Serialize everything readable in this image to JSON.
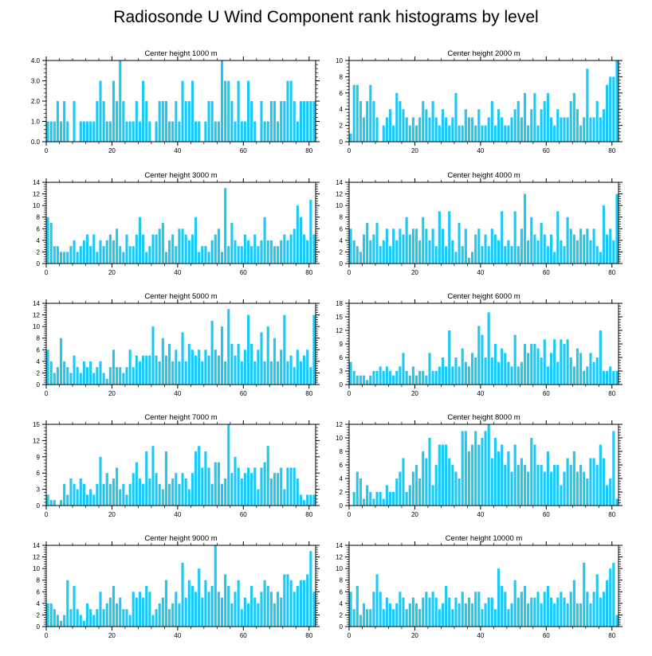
{
  "title": "Radiosonde U Wind Component rank histograms by level",
  "bar_color": "#1ec8f5",
  "chart_data": [
    {
      "type": "bar",
      "title": "Center height 1000 m",
      "xlim": [
        0,
        82
      ],
      "ylim": [
        0,
        4
      ],
      "xticks": [
        0,
        20,
        40,
        60,
        80
      ],
      "yticks": [
        0,
        1,
        2,
        3,
        4
      ],
      "yticklabels": [
        "0.0",
        "1.0",
        "2.0",
        "3.0",
        "4.0"
      ],
      "values": [
        1,
        1,
        1,
        2,
        1,
        2,
        1,
        0,
        2,
        0,
        1,
        1,
        1,
        1,
        1,
        2,
        3,
        2,
        1,
        1,
        3,
        2,
        4,
        2,
        1,
        1,
        1,
        2,
        1,
        3,
        2,
        1,
        0,
        1,
        2,
        2,
        2,
        1,
        1,
        2,
        1,
        3,
        2,
        2,
        3,
        1,
        1,
        0,
        1,
        2,
        2,
        1,
        1,
        4,
        3,
        3,
        2,
        1,
        3,
        1,
        1,
        3,
        2,
        1,
        0,
        2,
        1,
        1,
        2,
        2,
        1,
        2,
        2,
        3,
        3,
        2,
        1,
        2,
        2,
        2,
        2,
        2
      ],
      "value_basis": "estimated from gridlines"
    },
    {
      "type": "bar",
      "title": "Center height 2000 m",
      "xlim": [
        0,
        82
      ],
      "ylim": [
        0,
        10
      ],
      "xticks": [
        0,
        20,
        40,
        60,
        80
      ],
      "yticks": [
        0,
        2,
        4,
        6,
        8,
        10
      ],
      "yticklabels": [
        "0",
        "2",
        "4",
        "6",
        "8",
        "10"
      ],
      "values": [
        1,
        7,
        7,
        5,
        3,
        5,
        7,
        5,
        3,
        0,
        2,
        3,
        4,
        2,
        6,
        5,
        4,
        3,
        2,
        3,
        2,
        3,
        5,
        4,
        3,
        5,
        3,
        2,
        4,
        3,
        2,
        3,
        6,
        2,
        2,
        4,
        3,
        3,
        2,
        4,
        2,
        2,
        3,
        5,
        2,
        4,
        3,
        2,
        2,
        3,
        4,
        5,
        3,
        6,
        2,
        4,
        6,
        2,
        4,
        5,
        6,
        3,
        2,
        4,
        3,
        3,
        3,
        5,
        6,
        4,
        2,
        3,
        9,
        3,
        3,
        5,
        3,
        4,
        7,
        8,
        8,
        10
      ],
      "value_basis": "estimated from gridlines"
    },
    {
      "type": "bar",
      "title": "Center height 3000 m",
      "xlim": [
        0,
        82
      ],
      "ylim": [
        0,
        14
      ],
      "xticks": [
        0,
        20,
        40,
        60,
        80
      ],
      "yticks": [
        0,
        2,
        4,
        6,
        8,
        10,
        12,
        14
      ],
      "yticklabels": [
        "0",
        "2",
        "4",
        "6",
        "8",
        "10",
        "12",
        "14"
      ],
      "values": [
        8,
        7,
        3,
        3,
        2,
        2,
        2,
        3,
        4,
        2,
        3,
        4,
        5,
        3,
        5,
        2,
        4,
        3,
        4,
        5,
        4,
        6,
        3,
        2,
        5,
        3,
        3,
        5,
        8,
        5,
        2,
        3,
        5,
        5,
        6,
        7,
        2,
        4,
        5,
        3,
        6,
        6,
        5,
        4,
        5,
        8,
        2,
        3,
        3,
        2,
        4,
        5,
        6,
        2,
        13,
        3,
        7,
        4,
        3,
        3,
        5,
        4,
        3,
        5,
        3,
        4,
        8,
        4,
        4,
        3,
        3,
        4,
        5,
        4,
        5,
        6,
        10,
        8,
        5,
        4,
        11,
        5
      ],
      "value_basis": "estimated from gridlines"
    },
    {
      "type": "bar",
      "title": "Center height 4000 m",
      "xlim": [
        0,
        82
      ],
      "ylim": [
        0,
        14
      ],
      "xticks": [
        0,
        20,
        40,
        60,
        80
      ],
      "yticks": [
        0,
        2,
        4,
        6,
        8,
        10,
        12,
        14
      ],
      "yticklabels": [
        "0",
        "2",
        "4",
        "6",
        "8",
        "10",
        "12",
        "14"
      ],
      "values": [
        6,
        4,
        3,
        2,
        5,
        7,
        4,
        5,
        7,
        3,
        4,
        6,
        3,
        6,
        4,
        6,
        5,
        8,
        5,
        6,
        6,
        4,
        8,
        6,
        4,
        6,
        3,
        9,
        6,
        3,
        9,
        4,
        2,
        7,
        3,
        6,
        1,
        2,
        5,
        6,
        3,
        5,
        3,
        6,
        5,
        4,
        9,
        3,
        4,
        3,
        9,
        3,
        6,
        12,
        4,
        8,
        5,
        4,
        7,
        5,
        3,
        5,
        2,
        9,
        4,
        3,
        8,
        6,
        5,
        4,
        6,
        5,
        6,
        4,
        6,
        3,
        2,
        10,
        5,
        6,
        4,
        12
      ],
      "value_basis": "estimated from gridlines"
    },
    {
      "type": "bar",
      "title": "Center height 5000 m",
      "xlim": [
        0,
        82
      ],
      "ylim": [
        0,
        14
      ],
      "xticks": [
        0,
        20,
        40,
        60,
        80
      ],
      "yticks": [
        0,
        2,
        4,
        6,
        8,
        10,
        12,
        14
      ],
      "yticklabels": [
        "0",
        "2",
        "4",
        "6",
        "8",
        "10",
        "12",
        "14"
      ],
      "values": [
        6,
        4,
        2,
        3,
        8,
        4,
        3,
        2,
        5,
        3,
        2,
        4,
        3,
        4,
        2,
        3,
        4,
        2,
        1,
        3,
        6,
        3,
        3,
        2,
        3,
        6,
        3,
        5,
        4,
        5,
        5,
        5,
        10,
        5,
        4,
        8,
        5,
        7,
        4,
        6,
        4,
        9,
        4,
        7,
        6,
        5,
        6,
        4,
        6,
        5,
        11,
        6,
        5,
        10,
        4,
        13,
        7,
        5,
        7,
        4,
        6,
        12,
        7,
        4,
        6,
        9,
        4,
        10,
        4,
        8,
        4,
        6,
        12,
        4,
        5,
        3,
        6,
        4,
        5,
        6,
        3,
        12
      ],
      "value_basis": "estimated from gridlines"
    },
    {
      "type": "bar",
      "title": "Center height 6000 m",
      "xlim": [
        0,
        82
      ],
      "ylim": [
        0,
        18
      ],
      "xticks": [
        0,
        20,
        40,
        60,
        80
      ],
      "yticks": [
        0,
        3,
        6,
        9,
        12,
        15,
        18
      ],
      "yticklabels": [
        "0",
        "3",
        "6",
        "9",
        "12",
        "15",
        "18"
      ],
      "values": [
        5,
        3,
        2,
        2,
        2,
        1,
        2,
        3,
        3,
        4,
        3,
        4,
        3,
        2,
        3,
        4,
        7,
        3,
        2,
        4,
        2,
        3,
        3,
        2,
        7,
        3,
        3,
        4,
        6,
        4,
        12,
        4,
        6,
        4,
        8,
        5,
        4,
        7,
        6,
        13,
        11,
        6,
        16,
        6,
        9,
        5,
        8,
        7,
        5,
        4,
        11,
        4,
        5,
        9,
        7,
        9,
        9,
        8,
        6,
        10,
        4,
        7,
        10,
        5,
        10,
        9,
        10,
        6,
        4,
        8,
        7,
        3,
        4,
        7,
        5,
        6,
        12,
        3,
        3,
        4,
        3,
        3
      ],
      "value_basis": "estimated from gridlines"
    },
    {
      "type": "bar",
      "title": "Center height 7000 m",
      "xlim": [
        0,
        82
      ],
      "ylim": [
        0,
        15
      ],
      "xticks": [
        0,
        20,
        40,
        60,
        80
      ],
      "yticks": [
        0,
        3,
        6,
        9,
        12,
        15
      ],
      "yticklabels": [
        "0",
        "3",
        "6",
        "9",
        "12",
        "15"
      ],
      "values": [
        2,
        1,
        1,
        0,
        1,
        4,
        2,
        5,
        4,
        3,
        5,
        4,
        2,
        3,
        2,
        4,
        9,
        4,
        6,
        4,
        5,
        7,
        3,
        4,
        2,
        4,
        6,
        8,
        5,
        4,
        10,
        5,
        11,
        6,
        4,
        3,
        10,
        4,
        5,
        6,
        4,
        6,
        5,
        3,
        6,
        10,
        11,
        7,
        10,
        7,
        4,
        8,
        8,
        4,
        5,
        15,
        6,
        9,
        7,
        5,
        6,
        7,
        6,
        7,
        3,
        7,
        8,
        11,
        5,
        6,
        6,
        7,
        3,
        7,
        7,
        7,
        5,
        2,
        1,
        2,
        2,
        2
      ],
      "value_basis": "estimated from gridlines"
    },
    {
      "type": "bar",
      "title": "Center height 8000 m",
      "xlim": [
        0,
        82
      ],
      "ylim": [
        0,
        12
      ],
      "xticks": [
        0,
        20,
        40,
        60,
        80
      ],
      "yticks": [
        0,
        2,
        4,
        6,
        8,
        10,
        12
      ],
      "yticklabels": [
        "0",
        "2",
        "4",
        "6",
        "8",
        "10",
        "12"
      ],
      "values": [
        0,
        2,
        5,
        4,
        1,
        3,
        2,
        1,
        2,
        2,
        1,
        3,
        2,
        2,
        4,
        5,
        7,
        2,
        3,
        5,
        6,
        4,
        8,
        7,
        10,
        3,
        6,
        9,
        9,
        9,
        7,
        6,
        5,
        4,
        11,
        11,
        8,
        9,
        11,
        9,
        10,
        11,
        12,
        7,
        10,
        8,
        9,
        6,
        8,
        5,
        9,
        6,
        7,
        6,
        5,
        10,
        9,
        6,
        6,
        5,
        8,
        5,
        6,
        6,
        3,
        5,
        7,
        6,
        8,
        5,
        6,
        5,
        4,
        7,
        7,
        6,
        9,
        7,
        3,
        4,
        11,
        1
      ],
      "value_basis": "estimated from gridlines"
    },
    {
      "type": "bar",
      "title": "Center height 9000 m",
      "xlim": [
        0,
        82
      ],
      "ylim": [
        0,
        14
      ],
      "xticks": [
        0,
        20,
        40,
        60,
        80
      ],
      "yticks": [
        0,
        2,
        4,
        6,
        8,
        10,
        12,
        14
      ],
      "yticklabels": [
        "0",
        "2",
        "4",
        "6",
        "8",
        "10",
        "12",
        "14"
      ],
      "values": [
        4,
        4,
        3,
        2,
        1,
        2,
        8,
        3,
        7,
        3,
        2,
        1,
        4,
        3,
        2,
        3,
        6,
        3,
        4,
        5,
        7,
        4,
        5,
        3,
        3,
        2,
        6,
        5,
        6,
        5,
        7,
        6,
        2,
        3,
        4,
        5,
        8,
        3,
        4,
        6,
        4,
        11,
        5,
        8,
        7,
        6,
        10,
        5,
        8,
        6,
        7,
        14,
        6,
        5,
        9,
        7,
        4,
        6,
        8,
        3,
        5,
        4,
        7,
        5,
        4,
        6,
        8,
        7,
        6,
        4,
        6,
        5,
        9,
        9,
        8,
        6,
        7,
        8,
        8,
        9,
        13,
        6
      ],
      "value_basis": "estimated from gridlines"
    },
    {
      "type": "bar",
      "title": "Center height 10000 m",
      "xlim": [
        0,
        82
      ],
      "ylim": [
        0,
        14
      ],
      "xticks": [
        0,
        20,
        40,
        60,
        80
      ],
      "yticks": [
        0,
        2,
        4,
        6,
        8,
        10,
        12,
        14
      ],
      "yticklabels": [
        "0",
        "2",
        "4",
        "6",
        "8",
        "10",
        "12",
        "14"
      ],
      "values": [
        6,
        3,
        7,
        2,
        4,
        3,
        3,
        6,
        9,
        6,
        3,
        5,
        4,
        3,
        4,
        6,
        5,
        3,
        4,
        5,
        4,
        3,
        5,
        6,
        5,
        6,
        5,
        3,
        4,
        7,
        5,
        3,
        5,
        4,
        6,
        4,
        5,
        4,
        6,
        6,
        3,
        4,
        5,
        5,
        3,
        10,
        7,
        6,
        3,
        4,
        8,
        5,
        6,
        7,
        4,
        5,
        5,
        6,
        4,
        6,
        7,
        5,
        4,
        5,
        6,
        5,
        4,
        6,
        8,
        4,
        4,
        11,
        6,
        4,
        6,
        9,
        5,
        6,
        8,
        10,
        11,
        2
      ],
      "value_basis": "estimated from gridlines"
    }
  ]
}
